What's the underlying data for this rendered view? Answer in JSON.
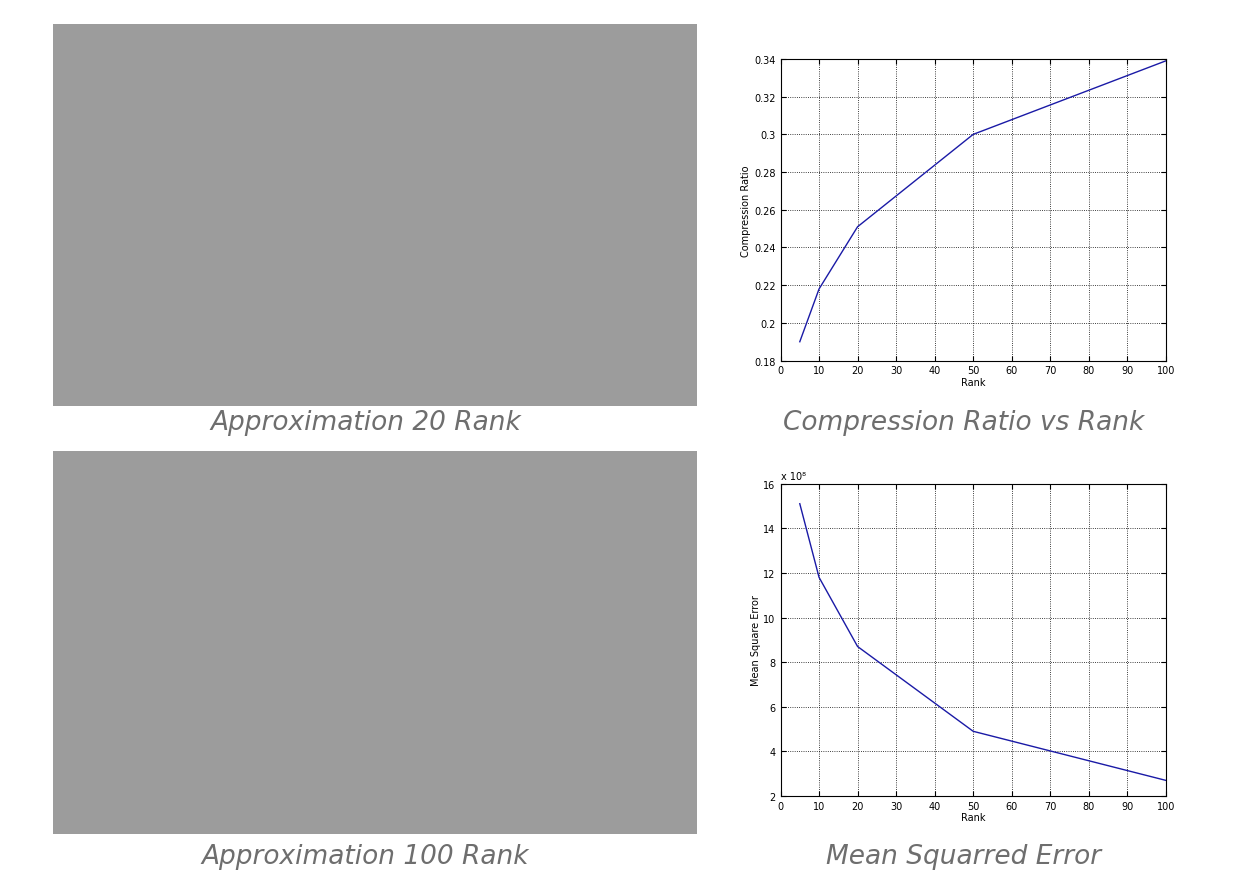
{
  "chart_data": [
    {
      "type": "image",
      "caption": "Approximation 20 Rank"
    },
    {
      "type": "line",
      "caption": "Compression Ratio vs Rank",
      "x_label": "Rank",
      "y_label": "Compression Ratio",
      "x": [
        5,
        10,
        20,
        50,
        100
      ],
      "values": [
        0.19,
        0.218,
        0.251,
        0.3,
        0.339
      ],
      "color": "#1a1aa6",
      "xlim": [
        0,
        100
      ],
      "xticks": [
        0,
        10,
        20,
        30,
        40,
        50,
        60,
        70,
        80,
        90,
        100
      ],
      "ylim": [
        0.18,
        0.34
      ],
      "yticks": [
        0.18,
        0.2,
        0.22,
        0.24,
        0.26,
        0.28,
        0.3,
        0.32,
        0.34
      ],
      "grid": true
    },
    {
      "type": "image",
      "caption": "Approximation 100 Rank"
    },
    {
      "type": "line",
      "caption": "Mean Squarred Error",
      "x_label": "Rank",
      "y_label": "Mean Square Error",
      "annotation": "x 10⁸",
      "x": [
        5,
        10,
        20,
        50,
        100
      ],
      "values": [
        15.1,
        11.8,
        8.7,
        4.9,
        2.7
      ],
      "color": "#1a1aa6",
      "xlim": [
        0,
        100
      ],
      "xticks": [
        0,
        10,
        20,
        30,
        40,
        50,
        60,
        70,
        80,
        90,
        100
      ],
      "ylim": [
        2,
        16
      ],
      "yticks": [
        2,
        4,
        6,
        8,
        10,
        12,
        14,
        16
      ],
      "grid": true
    }
  ]
}
